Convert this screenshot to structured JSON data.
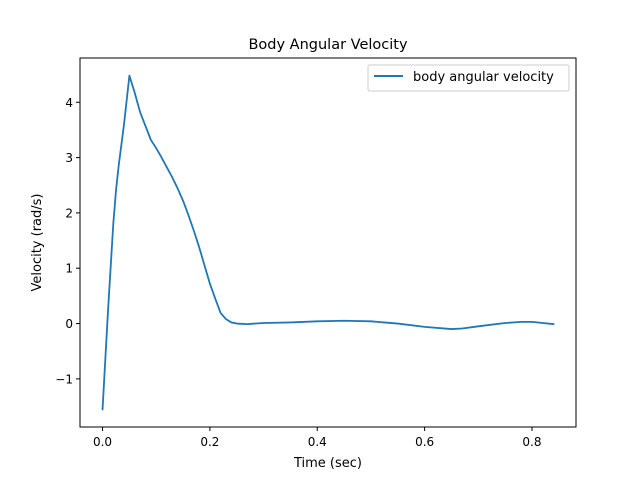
{
  "chart_data": {
    "type": "line",
    "title": "Body Angular Velocity",
    "xlabel": "Time (sec)",
    "ylabel": "Velocity (rad/s)",
    "xlim": [
      -0.042,
      0.882
    ],
    "ylim": [
      -1.87,
      4.8
    ],
    "xticks": [
      0.0,
      0.2,
      0.4,
      0.6,
      0.8
    ],
    "xtick_labels": [
      "0.0",
      "0.2",
      "0.4",
      "0.6",
      "0.8"
    ],
    "yticks": [
      -1,
      0,
      1,
      2,
      3,
      4
    ],
    "ytick_labels": [
      "−1",
      "0",
      "1",
      "2",
      "3",
      "4"
    ],
    "grid": false,
    "legend": {
      "position": "upper right"
    },
    "series": [
      {
        "name": "body angular velocity",
        "color": "#1f77b4",
        "x": [
          0.0,
          0.01,
          0.02,
          0.025,
          0.03,
          0.04,
          0.05,
          0.06,
          0.07,
          0.08,
          0.09,
          0.1,
          0.11,
          0.12,
          0.13,
          0.14,
          0.15,
          0.16,
          0.17,
          0.18,
          0.19,
          0.2,
          0.21,
          0.22,
          0.23,
          0.24,
          0.25,
          0.27,
          0.3,
          0.35,
          0.4,
          0.45,
          0.5,
          0.55,
          0.6,
          0.65,
          0.67,
          0.7,
          0.75,
          0.78,
          0.8,
          0.82,
          0.84
        ],
        "y": [
          -1.55,
          0.2,
          1.8,
          2.4,
          2.85,
          3.6,
          4.48,
          4.17,
          3.82,
          3.57,
          3.32,
          3.17,
          3.0,
          2.82,
          2.64,
          2.44,
          2.22,
          1.96,
          1.68,
          1.38,
          1.05,
          0.72,
          0.45,
          0.19,
          0.08,
          0.02,
          0.0,
          -0.01,
          0.01,
          0.02,
          0.04,
          0.05,
          0.04,
          0.0,
          -0.06,
          -0.1,
          -0.09,
          -0.05,
          0.01,
          0.03,
          0.03,
          0.01,
          -0.01
        ]
      }
    ]
  }
}
